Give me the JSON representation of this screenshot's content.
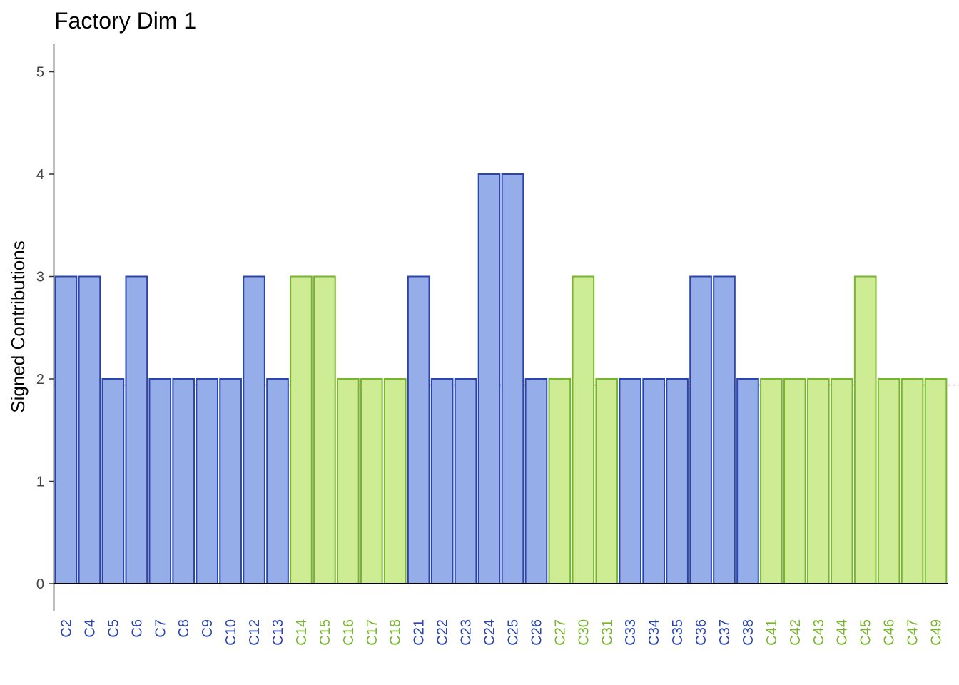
{
  "chart_data": {
    "type": "bar",
    "title": "Factory Dim 1",
    "xlabel": "",
    "ylabel": "Signed Contributions",
    "ylim": [
      -0.25,
      5.25
    ],
    "yticks": [
      0,
      1,
      2,
      3,
      4,
      5
    ],
    "reference_line": 1.94,
    "grid": false,
    "legend": "none",
    "categories": [
      "C2",
      "C4",
      "C5",
      "C6",
      "C7",
      "C8",
      "C9",
      "C10",
      "C12",
      "C13",
      "C14",
      "C15",
      "C16",
      "C17",
      "C18",
      "C21",
      "C22",
      "C23",
      "C24",
      "C25",
      "C26",
      "C27",
      "C30",
      "C31",
      "C33",
      "C34",
      "C35",
      "C36",
      "C37",
      "C38",
      "C41",
      "C42",
      "C43",
      "C44",
      "C45",
      "C46",
      "C47",
      "C49"
    ],
    "values": [
      3,
      3,
      2,
      3,
      2,
      2,
      2,
      2,
      3,
      2,
      3,
      3,
      2,
      2,
      2,
      3,
      2,
      2,
      4,
      4,
      2,
      2,
      3,
      2,
      2,
      2,
      2,
      3,
      3,
      2,
      2,
      2,
      2,
      2,
      3,
      2,
      2,
      2
    ],
    "groups": [
      "a",
      "a",
      "a",
      "a",
      "a",
      "a",
      "a",
      "a",
      "a",
      "a",
      "b",
      "b",
      "b",
      "b",
      "b",
      "a",
      "a",
      "a",
      "a",
      "a",
      "a",
      "b",
      "b",
      "b",
      "a",
      "a",
      "a",
      "a",
      "a",
      "a",
      "b",
      "b",
      "b",
      "b",
      "b",
      "b",
      "b",
      "b"
    ],
    "group_colors": {
      "a": {
        "fill": "#95aeea",
        "stroke": "#2a44b0",
        "label": "#2a44b0"
      },
      "b": {
        "fill": "#cdec93",
        "stroke": "#77b52c",
        "label": "#77b52c"
      }
    },
    "reference_line_color": "#e89aa8"
  }
}
